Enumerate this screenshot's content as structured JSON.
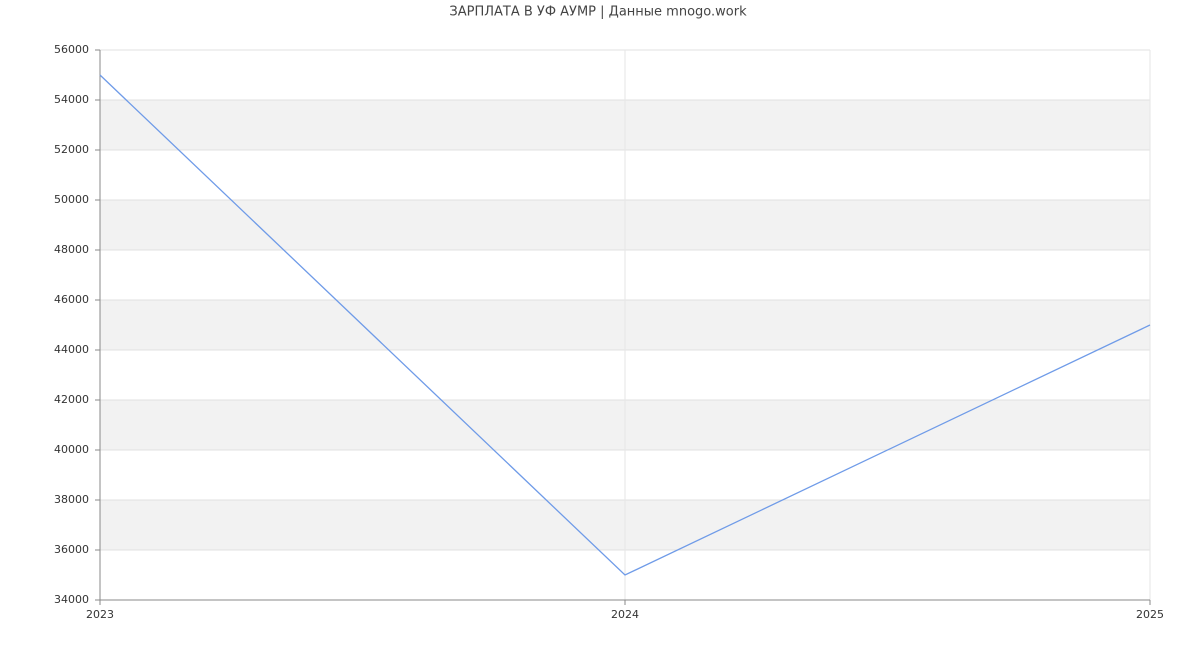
{
  "chart_data": {
    "type": "line",
    "title": "ЗАРПЛАТА В УФ АУМР | Данные mnogo.work",
    "x": [
      2023,
      2024,
      2025
    ],
    "values": [
      55000,
      35000,
      45000
    ],
    "color": "#6f9be8",
    "xlim": [
      2023,
      2025
    ],
    "xticks": [
      2023,
      2024,
      2025
    ],
    "ylim": [
      34000,
      56000
    ],
    "yticks": [
      34000,
      36000,
      38000,
      40000,
      42000,
      44000,
      46000,
      48000,
      50000,
      52000,
      54000,
      56000
    ],
    "grid": true
  }
}
